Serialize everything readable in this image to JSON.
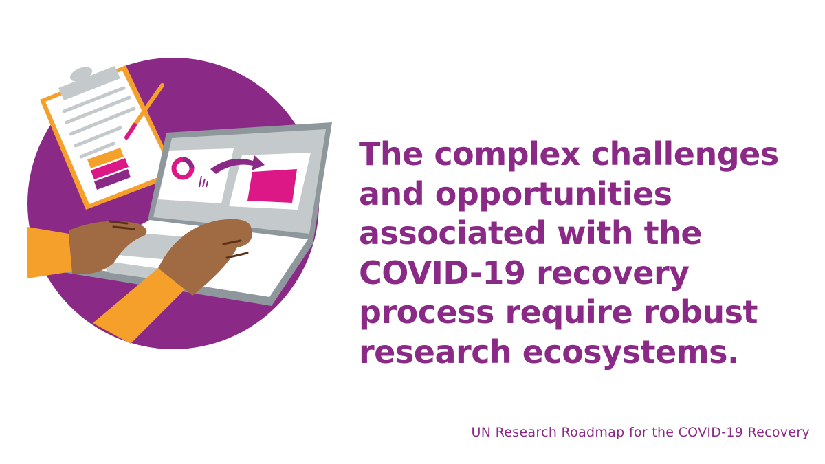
{
  "headline": {
    "lines": [
      "The complex challenges",
      "and opportunities",
      "associated with the",
      "COVID-19 recovery"
    ],
    "line5_regular": "process require ",
    "line5_bold": "robust",
    "line6_bold": "research",
    "line6_regular": " ecosystems."
  },
  "footer": "UN Research Roadmap for the COVID-19 Recovery",
  "colors": {
    "purple": "#8b2a86",
    "magenta": "#dc1886",
    "orange": "#f5a02a",
    "gray": "#c4cacc",
    "skin": "#a06a42"
  }
}
